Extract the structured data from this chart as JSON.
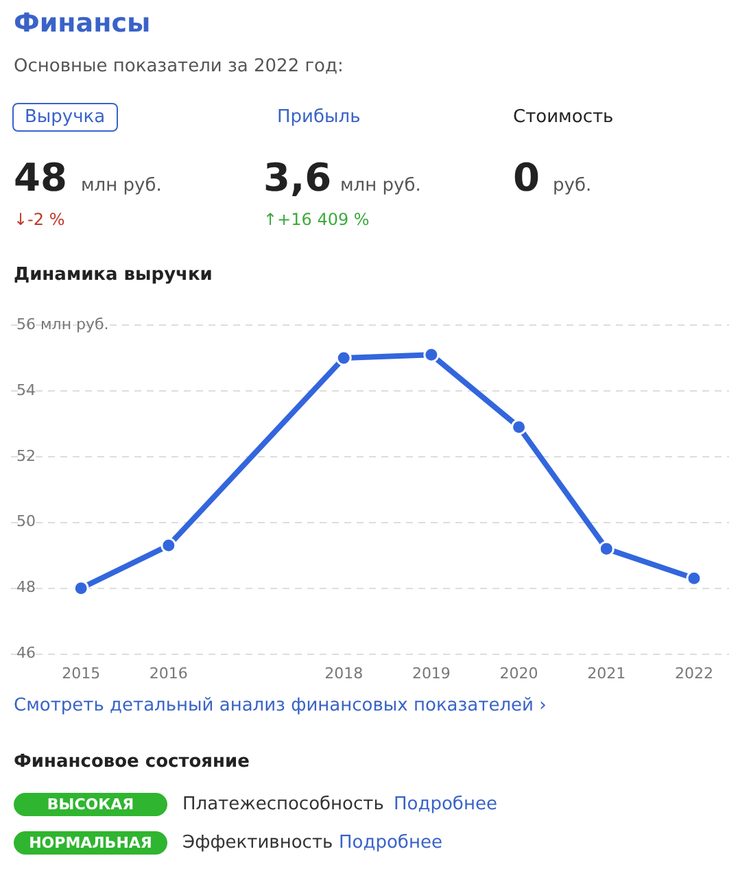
{
  "chart_data": [
    {
      "type": "other",
      "title": "Финансы",
      "subtitle": "Основные показатели за 2022 год:",
      "annotations": [
        "Выручка",
        "48",
        "млн руб.",
        "↓-2 %",
        "Прибыль",
        "3,6",
        "млн руб.",
        "↑+16 409 %",
        "Стоимость",
        "0",
        "руб."
      ]
    },
    {
      "type": "line",
      "title": "Динамика выручки",
      "x": [
        2015,
        2016,
        2018,
        2019,
        2020,
        2021,
        2022
      ],
      "series": [
        {
          "color": "#3366dd",
          "values": [
            48.0,
            49.3,
            55.0,
            55.1,
            52.9,
            49.2,
            48.3
          ]
        }
      ],
      "xlim": [
        2014.2,
        2022.4
      ],
      "xticks": [
        2015,
        2016,
        2018,
        2019,
        2020,
        2021,
        2022
      ],
      "ylim": [
        46,
        56
      ],
      "yticks": [
        46,
        48,
        50,
        52,
        54,
        {
          "value": 56,
          "label": "56 млн руб."
        }
      ],
      "grid": "y",
      "legend": false,
      "marker": "circle",
      "line_style": "solid",
      "annotations": [
        "Смотреть детальный анализ финансовых показателей ›"
      ]
    },
    {
      "type": "other",
      "title": "Финансовое состояние",
      "annotations": [
        "ВЫСОКАЯ",
        "Платежеспособность",
        "Подробнее",
        "НОРМАЛЬНАЯ",
        "Эффективность",
        "Подробнее"
      ]
    }
  ]
}
